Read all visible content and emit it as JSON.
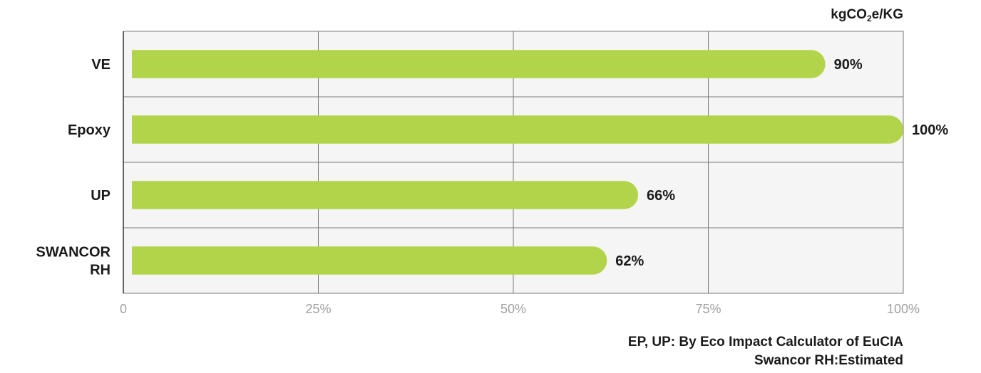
{
  "unit_label": {
    "main": "kgCO",
    "sub": "2",
    "rest": "e/KG"
  },
  "notes": [
    "EP, UP: By Eco Impact Calculator of EuCIA",
    "Swancor RH:Estimated"
  ],
  "colors": {
    "bar": "#b2d44a",
    "plot_bg": "#f5f5f5",
    "grid": "#7a7a7a",
    "axis": "#333333"
  },
  "chart_data": {
    "type": "bar",
    "orientation": "horizontal",
    "categories": [
      [
        "VE"
      ],
      [
        "Epoxy"
      ],
      [
        "UP"
      ],
      [
        "SWANCOR",
        "RH"
      ]
    ],
    "values": [
      90,
      100,
      66,
      62
    ],
    "value_labels": [
      "90%",
      "100%",
      "66%",
      "62%"
    ],
    "xlim": [
      0,
      100
    ],
    "xticks": [
      0,
      25,
      50,
      75,
      100
    ],
    "xtick_labels": [
      "0",
      "25%",
      "50%",
      "75%",
      "100%"
    ],
    "grid": true
  }
}
